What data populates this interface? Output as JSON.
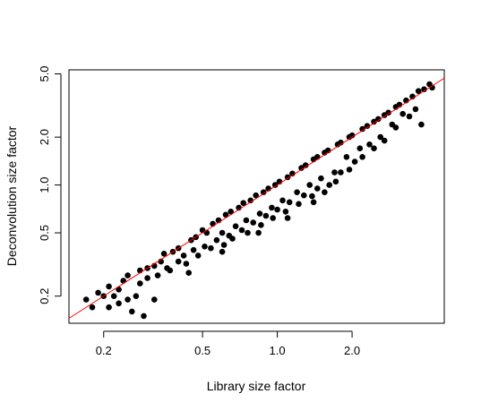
{
  "chart_data": {
    "type": "scatter",
    "title": "",
    "xlabel": "Library size factor",
    "ylabel": "Deconvolution size factor",
    "x_scale": "log",
    "y_scale": "log",
    "xlim": [
      0.145,
      4.7
    ],
    "ylim": [
      0.135,
      5.3
    ],
    "x_ticks": [
      0.2,
      0.5,
      1.0,
      2.0
    ],
    "x_tick_labels": [
      "0.2",
      "0.5",
      "1.0",
      "2.0"
    ],
    "y_ticks": [
      0.2,
      0.5,
      1.0,
      2.0,
      5.0
    ],
    "y_tick_labels": [
      "0.2",
      "0.5",
      "1.0",
      "2.0",
      "5.0"
    ],
    "grid": false,
    "point_color": "#000000",
    "line_color": "#ff0000",
    "reference_line": {
      "type": "identity",
      "x": [
        0.145,
        4.7
      ],
      "y": [
        0.145,
        4.7
      ]
    },
    "points": [
      [
        0.17,
        0.19
      ],
      [
        0.18,
        0.17
      ],
      [
        0.19,
        0.21
      ],
      [
        0.2,
        0.2
      ],
      [
        0.21,
        0.23
      ],
      [
        0.22,
        0.2
      ],
      [
        0.23,
        0.22
      ],
      [
        0.24,
        0.25
      ],
      [
        0.21,
        0.17
      ],
      [
        0.23,
        0.18
      ],
      [
        0.25,
        0.19
      ],
      [
        0.27,
        0.2
      ],
      [
        0.25,
        0.27
      ],
      [
        0.28,
        0.29
      ],
      [
        0.3,
        0.3
      ],
      [
        0.28,
        0.24
      ],
      [
        0.3,
        0.26
      ],
      [
        0.32,
        0.31
      ],
      [
        0.34,
        0.33
      ],
      [
        0.33,
        0.27
      ],
      [
        0.36,
        0.3
      ],
      [
        0.35,
        0.37
      ],
      [
        0.38,
        0.38
      ],
      [
        0.4,
        0.4
      ],
      [
        0.37,
        0.29
      ],
      [
        0.4,
        0.33
      ],
      [
        0.42,
        0.36
      ],
      [
        0.45,
        0.45
      ],
      [
        0.47,
        0.47
      ],
      [
        0.43,
        0.32
      ],
      [
        0.46,
        0.39
      ],
      [
        0.5,
        0.52
      ],
      [
        0.52,
        0.5
      ],
      [
        0.48,
        0.36
      ],
      [
        0.51,
        0.41
      ],
      [
        0.55,
        0.57
      ],
      [
        0.58,
        0.6
      ],
      [
        0.54,
        0.4
      ],
      [
        0.57,
        0.45
      ],
      [
        0.6,
        0.5
      ],
      [
        0.62,
        0.65
      ],
      [
        0.65,
        0.68
      ],
      [
        0.61,
        0.42
      ],
      [
        0.64,
        0.48
      ],
      [
        0.68,
        0.55
      ],
      [
        0.7,
        0.72
      ],
      [
        0.73,
        0.77
      ],
      [
        0.66,
        0.46
      ],
      [
        0.72,
        0.52
      ],
      [
        0.75,
        0.6
      ],
      [
        0.78,
        0.8
      ],
      [
        0.82,
        0.86
      ],
      [
        0.76,
        0.5
      ],
      [
        0.8,
        0.58
      ],
      [
        0.85,
        0.66
      ],
      [
        0.88,
        0.9
      ],
      [
        0.92,
        0.95
      ],
      [
        0.86,
        0.56
      ],
      [
        0.9,
        0.64
      ],
      [
        0.95,
        0.72
      ],
      [
        0.98,
        1.0
      ],
      [
        1.02,
        1.05
      ],
      [
        0.96,
        0.62
      ],
      [
        1.0,
        0.7
      ],
      [
        1.05,
        0.8
      ],
      [
        1.1,
        1.12
      ],
      [
        1.15,
        1.18
      ],
      [
        1.08,
        0.68
      ],
      [
        1.12,
        0.78
      ],
      [
        1.2,
        0.9
      ],
      [
        1.25,
        1.28
      ],
      [
        1.3,
        1.33
      ],
      [
        1.22,
        0.76
      ],
      [
        1.28,
        0.86
      ],
      [
        1.35,
        1.0
      ],
      [
        1.4,
        1.45
      ],
      [
        1.45,
        1.5
      ],
      [
        1.38,
        0.85
      ],
      [
        1.45,
        0.95
      ],
      [
        1.5,
        1.1
      ],
      [
        1.55,
        1.6
      ],
      [
        1.6,
        1.65
      ],
      [
        1.55,
        0.9
      ],
      [
        1.62,
        1.0
      ],
      [
        1.7,
        1.2
      ],
      [
        1.75,
        1.8
      ],
      [
        1.8,
        1.85
      ],
      [
        1.72,
        1.05
      ],
      [
        1.8,
        1.2
      ],
      [
        1.9,
        1.5
      ],
      [
        1.95,
        2.0
      ],
      [
        2.0,
        2.05
      ],
      [
        1.95,
        1.25
      ],
      [
        2.05,
        1.4
      ],
      [
        2.15,
        1.7
      ],
      [
        2.2,
        2.25
      ],
      [
        2.3,
        2.35
      ],
      [
        2.2,
        1.5
      ],
      [
        2.35,
        1.8
      ],
      [
        2.45,
        2.5
      ],
      [
        2.55,
        2.6
      ],
      [
        2.45,
        1.7
      ],
      [
        2.6,
        2.0
      ],
      [
        2.7,
        2.75
      ],
      [
        2.8,
        2.85
      ],
      [
        2.7,
        1.9
      ],
      [
        2.9,
        2.4
      ],
      [
        3.0,
        3.1
      ],
      [
        3.1,
        3.2
      ],
      [
        3.0,
        2.3
      ],
      [
        3.2,
        2.8
      ],
      [
        3.3,
        3.4
      ],
      [
        3.5,
        3.6
      ],
      [
        3.4,
        2.7
      ],
      [
        3.6,
        3.0
      ],
      [
        3.7,
        3.9
      ],
      [
        3.9,
        4.0
      ],
      [
        4.1,
        4.3
      ],
      [
        3.8,
        2.4
      ],
      [
        4.2,
        4.1
      ],
      [
        0.26,
        0.16
      ],
      [
        0.29,
        0.15
      ],
      [
        0.32,
        0.19
      ],
      [
        0.44,
        0.28
      ],
      [
        0.6,
        0.38
      ],
      [
        0.84,
        0.5
      ],
      [
        1.1,
        0.62
      ],
      [
        1.4,
        0.78
      ]
    ]
  }
}
